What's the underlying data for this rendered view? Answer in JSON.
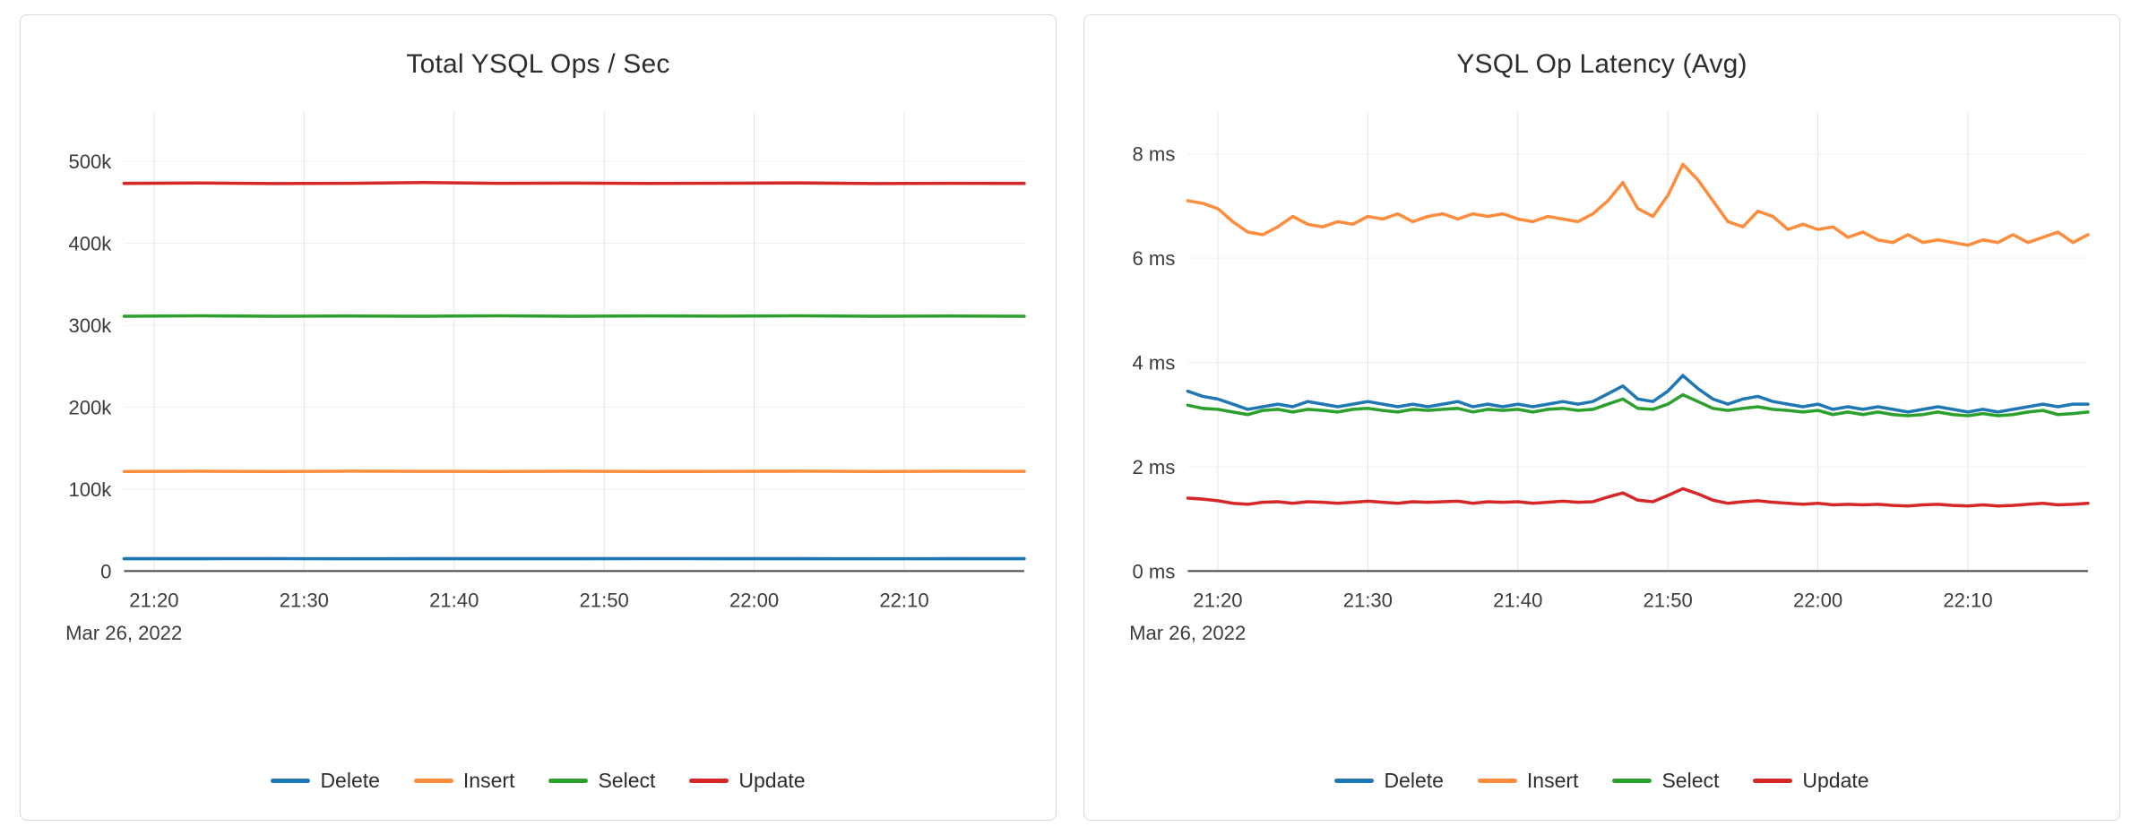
{
  "charts": [
    {
      "title": "Total YSQL Ops / Sec",
      "date_label": "Mar 26, 2022",
      "chart_data": {
        "type": "line",
        "x_unit": "minutes since 21:18 (Mar 26, 2022)",
        "xlim": [
          0,
          60
        ],
        "ylim": [
          0,
          560000
        ],
        "grid": true,
        "legend_position": "bottom",
        "x": [
          0,
          5,
          10,
          15,
          20,
          25,
          30,
          35,
          40,
          45,
          50,
          55,
          60
        ],
        "x_ticks": [
          {
            "pos": 2,
            "label": "21:20"
          },
          {
            "pos": 12,
            "label": "21:30"
          },
          {
            "pos": 22,
            "label": "21:40"
          },
          {
            "pos": 32,
            "label": "21:50"
          },
          {
            "pos": 42,
            "label": "22:00"
          },
          {
            "pos": 52,
            "label": "22:10"
          }
        ],
        "y_ticks": [
          {
            "pos": 0,
            "label": "0"
          },
          {
            "pos": 100000,
            "label": "100k"
          },
          {
            "pos": 200000,
            "label": "200k"
          },
          {
            "pos": 300000,
            "label": "300k"
          },
          {
            "pos": 400000,
            "label": "400k"
          },
          {
            "pos": 500000,
            "label": "500k"
          }
        ],
        "series": [
          {
            "name": "Delete",
            "color": "#1f77b4",
            "values": [
              15200,
              15100,
              15300,
              15000,
              15200,
              15100,
              15200,
              15300,
              15100,
              15200,
              15000,
              15100,
              15200
            ]
          },
          {
            "name": "Insert",
            "color": "#fd8c3c",
            "values": [
              121500,
              121800,
              121600,
              121900,
              121700,
              121500,
              121800,
              121600,
              121700,
              121900,
              121600,
              121800,
              121700
            ]
          },
          {
            "name": "Select",
            "color": "#2ca02c",
            "values": [
              311000,
              311500,
              310800,
              311200,
              311000,
              311400,
              310900,
              311300,
              311100,
              311500,
              310800,
              311200,
              311000
            ]
          },
          {
            "name": "Update",
            "color": "#d62728",
            "values": [
              473000,
              473500,
              472800,
              473200,
              474000,
              473100,
              473400,
              472900,
              473300,
              473600,
              472800,
              473200,
              473000
            ]
          }
        ]
      }
    },
    {
      "title": "YSQL Op Latency (Avg)",
      "date_label": "Mar 26, 2022",
      "chart_data": {
        "type": "line",
        "x_unit": "minutes since 21:18 (Mar 26, 2022)",
        "xlim": [
          0,
          60
        ],
        "ylim": [
          0,
          8.8
        ],
        "grid": true,
        "legend_position": "bottom",
        "x": [
          0,
          1,
          2,
          3,
          4,
          5,
          6,
          7,
          8,
          9,
          10,
          11,
          12,
          13,
          14,
          15,
          16,
          17,
          18,
          19,
          20,
          21,
          22,
          23,
          24,
          25,
          26,
          27,
          28,
          29,
          30,
          31,
          32,
          33,
          34,
          35,
          36,
          37,
          38,
          39,
          40,
          41,
          42,
          43,
          44,
          45,
          46,
          47,
          48,
          49,
          50,
          51,
          52,
          53,
          54,
          55,
          56,
          57,
          58,
          59,
          60
        ],
        "x_ticks": [
          {
            "pos": 2,
            "label": "21:20"
          },
          {
            "pos": 12,
            "label": "21:30"
          },
          {
            "pos": 22,
            "label": "21:40"
          },
          {
            "pos": 32,
            "label": "21:50"
          },
          {
            "pos": 42,
            "label": "22:00"
          },
          {
            "pos": 52,
            "label": "22:10"
          }
        ],
        "y_ticks": [
          {
            "pos": 0,
            "label": "0 ms"
          },
          {
            "pos": 2,
            "label": "2 ms"
          },
          {
            "pos": 4,
            "label": "4 ms"
          },
          {
            "pos": 6,
            "label": "6 ms"
          },
          {
            "pos": 8,
            "label": "8 ms"
          }
        ],
        "series": [
          {
            "name": "Delete",
            "color": "#1f77b4",
            "values": [
              3.45,
              3.35,
              3.3,
              3.2,
              3.1,
              3.15,
              3.2,
              3.15,
              3.25,
              3.2,
              3.15,
              3.2,
              3.25,
              3.2,
              3.15,
              3.2,
              3.15,
              3.2,
              3.25,
              3.15,
              3.2,
              3.15,
              3.2,
              3.15,
              3.2,
              3.25,
              3.2,
              3.25,
              3.4,
              3.55,
              3.3,
              3.25,
              3.45,
              3.75,
              3.5,
              3.3,
              3.2,
              3.3,
              3.35,
              3.25,
              3.2,
              3.15,
              3.2,
              3.1,
              3.15,
              3.1,
              3.15,
              3.1,
              3.05,
              3.1,
              3.15,
              3.1,
              3.05,
              3.1,
              3.05,
              3.1,
              3.15,
              3.2,
              3.15,
              3.2,
              3.2
            ]
          },
          {
            "name": "Insert",
            "color": "#fd8c3c",
            "values": [
              7.1,
              7.05,
              6.95,
              6.7,
              6.5,
              6.45,
              6.6,
              6.8,
              6.65,
              6.6,
              6.7,
              6.65,
              6.8,
              6.75,
              6.85,
              6.7,
              6.8,
              6.85,
              6.75,
              6.85,
              6.8,
              6.85,
              6.75,
              6.7,
              6.8,
              6.75,
              6.7,
              6.85,
              7.1,
              7.45,
              6.95,
              6.8,
              7.2,
              7.8,
              7.5,
              7.1,
              6.7,
              6.6,
              6.9,
              6.8,
              6.55,
              6.65,
              6.55,
              6.6,
              6.4,
              6.5,
              6.35,
              6.3,
              6.45,
              6.3,
              6.35,
              6.3,
              6.25,
              6.35,
              6.3,
              6.45,
              6.3,
              6.4,
              6.5,
              6.3,
              6.45
            ]
          },
          {
            "name": "Select",
            "color": "#2ca02c",
            "values": [
              3.18,
              3.12,
              3.1,
              3.05,
              3.0,
              3.08,
              3.1,
              3.05,
              3.1,
              3.08,
              3.05,
              3.1,
              3.12,
              3.08,
              3.05,
              3.1,
              3.08,
              3.1,
              3.12,
              3.05,
              3.1,
              3.08,
              3.1,
              3.05,
              3.1,
              3.12,
              3.08,
              3.1,
              3.2,
              3.3,
              3.12,
              3.1,
              3.2,
              3.38,
              3.25,
              3.12,
              3.08,
              3.12,
              3.15,
              3.1,
              3.08,
              3.05,
              3.08,
              3.0,
              3.05,
              3.0,
              3.05,
              3.0,
              2.98,
              3.0,
              3.05,
              3.0,
              2.98,
              3.02,
              2.98,
              3.0,
              3.05,
              3.08,
              3.0,
              3.02,
              3.05
            ]
          },
          {
            "name": "Update",
            "color": "#d62728",
            "values": [
              1.4,
              1.38,
              1.35,
              1.3,
              1.28,
              1.32,
              1.33,
              1.3,
              1.33,
              1.32,
              1.3,
              1.32,
              1.34,
              1.32,
              1.3,
              1.33,
              1.32,
              1.33,
              1.34,
              1.3,
              1.33,
              1.32,
              1.33,
              1.3,
              1.32,
              1.34,
              1.32,
              1.33,
              1.42,
              1.5,
              1.36,
              1.33,
              1.45,
              1.58,
              1.48,
              1.36,
              1.3,
              1.33,
              1.35,
              1.32,
              1.3,
              1.28,
              1.3,
              1.27,
              1.28,
              1.27,
              1.28,
              1.26,
              1.25,
              1.27,
              1.28,
              1.26,
              1.25,
              1.27,
              1.25,
              1.26,
              1.28,
              1.3,
              1.27,
              1.28,
              1.3
            ]
          }
        ]
      }
    }
  ]
}
